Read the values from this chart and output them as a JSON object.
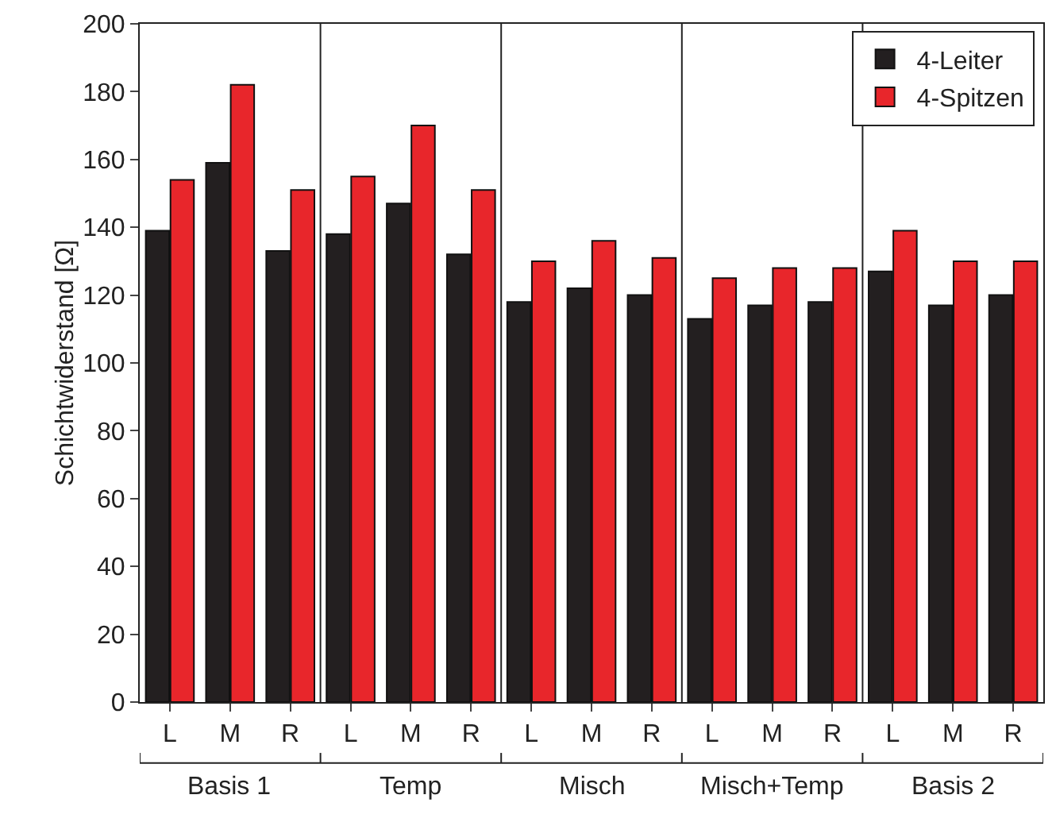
{
  "chart_data": {
    "type": "bar",
    "ylabel": "Schichtwiderstand [Ω]",
    "categories": [
      "L",
      "M",
      "R",
      "L",
      "M",
      "R",
      "L",
      "M",
      "R",
      "L",
      "M",
      "R",
      "L",
      "M",
      "R"
    ],
    "series": [
      {
        "name": "4-Leiter",
        "color": "#231f20",
        "values": [
          139,
          159,
          133,
          138,
          147,
          132,
          118,
          122,
          120,
          113,
          117,
          118,
          127,
          117,
          120
        ]
      },
      {
        "name": "4-Spitzen",
        "color": "#e8262b",
        "values": [
          154,
          182,
          151,
          155,
          170,
          151,
          130,
          136,
          131,
          125,
          128,
          128,
          139,
          130,
          130
        ]
      }
    ],
    "annotations": [
      "Basis 1",
      "Temp",
      "Misch",
      "Misch+Temp",
      "Basis 2"
    ],
    "ylim": [
      0,
      200
    ],
    "yticks": [
      0,
      20,
      40,
      60,
      80,
      100,
      120,
      140,
      160,
      180,
      200
    ],
    "grid": false,
    "legend": "top right"
  }
}
